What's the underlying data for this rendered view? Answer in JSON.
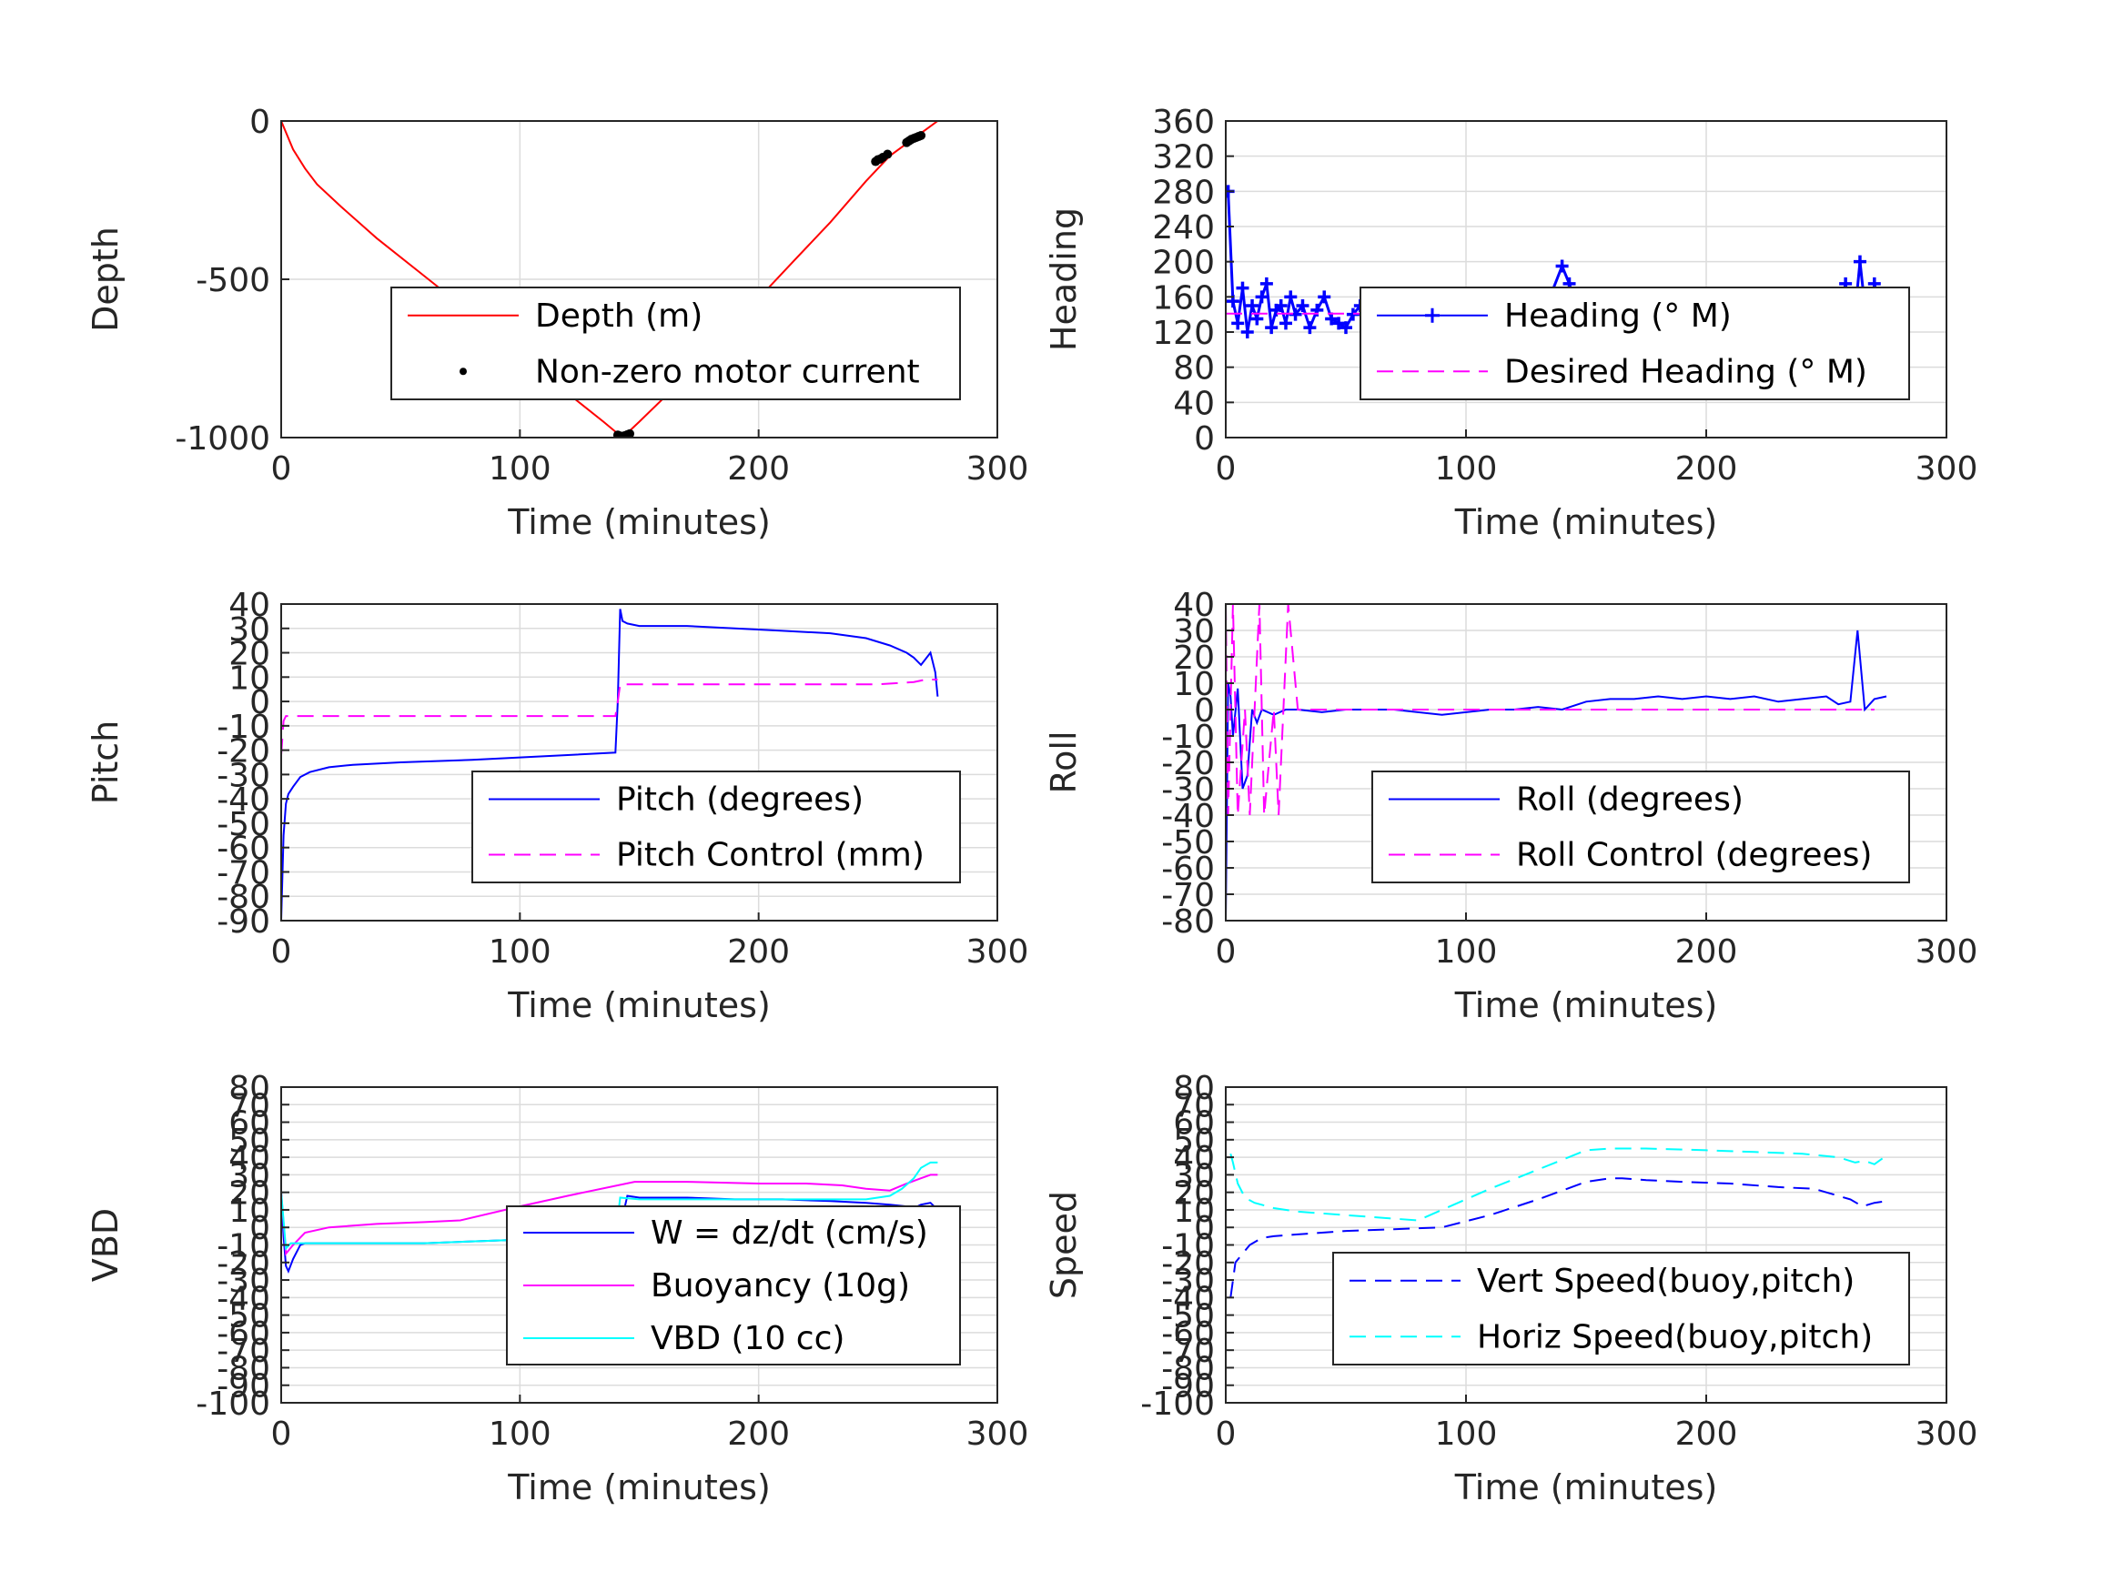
{
  "chart_data": [
    {
      "type": "line",
      "ylabel": "Depth",
      "xlabel": "Time (minutes)",
      "xlim": [
        0,
        300
      ],
      "ylim": [
        -1000,
        0
      ],
      "xticks": [
        "0",
        "100",
        "200",
        "300"
      ],
      "yticks": [
        "0",
        "-500",
        "-1000"
      ],
      "grid": true,
      "legend_position": "center-right",
      "series": [
        {
          "name": "Depth (m)",
          "color": "#ff0000",
          "style": "solid",
          "x": [
            0,
            5,
            10,
            15,
            25,
            40,
            60,
            80,
            100,
            120,
            135,
            143,
            150,
            165,
            180,
            200,
            215,
            230,
            245,
            255,
            265,
            275
          ],
          "y": [
            0,
            -90,
            -150,
            -200,
            -270,
            -370,
            -490,
            -610,
            -730,
            -860,
            -950,
            -1000,
            -950,
            -840,
            -720,
            -560,
            -440,
            -320,
            -190,
            -110,
            -55,
            0
          ]
        },
        {
          "name": "Non-zero motor current",
          "color": "#000000",
          "style": "dots",
          "x": [
            141,
            142,
            143,
            144,
            145,
            146,
            249,
            250,
            251,
            252,
            254,
            262,
            263,
            264,
            265,
            266,
            267,
            268
          ],
          "y": [
            -992,
            -995,
            -996,
            -994,
            -991,
            -988,
            -128,
            -122,
            -120,
            -115,
            -105,
            -68,
            -63,
            -58,
            -55,
            -52,
            -49,
            -46
          ]
        }
      ]
    },
    {
      "type": "line",
      "ylabel": "Heading",
      "xlabel": "Time (minutes)",
      "xlim": [
        0,
        300
      ],
      "ylim": [
        0,
        360
      ],
      "xticks": [
        "0",
        "100",
        "200",
        "300"
      ],
      "yticks": [
        "0",
        "40",
        "80",
        "120",
        "160",
        "200",
        "240",
        "280",
        "320",
        "360"
      ],
      "grid": true,
      "legend_position": "center-right",
      "series": [
        {
          "name": "Heading (° M)",
          "color": "#0000ff",
          "style": "plus",
          "x": [
            1,
            3,
            5,
            7,
            9,
            11,
            13,
            15,
            17,
            19,
            21,
            23,
            25,
            27,
            29,
            32,
            35,
            38,
            41,
            44,
            47,
            50,
            53,
            56,
            60,
            65,
            70,
            75,
            80,
            85,
            90,
            95,
            100,
            105,
            110,
            115,
            120,
            125,
            130,
            135,
            140,
            143,
            146,
            150,
            155,
            160,
            165,
            170,
            175,
            180,
            185,
            190,
            195,
            200,
            205,
            210,
            215,
            220,
            225,
            230,
            235,
            240,
            245,
            250,
            255,
            258,
            261,
            264,
            266,
            268,
            270,
            273,
            276
          ],
          "y": [
            280,
            155,
            130,
            170,
            120,
            150,
            135,
            160,
            175,
            125,
            145,
            150,
            130,
            160,
            140,
            150,
            125,
            145,
            160,
            135,
            130,
            125,
            140,
            150,
            130,
            145,
            155,
            140,
            150,
            135,
            125,
            145,
            135,
            150,
            145,
            140,
            135,
            150,
            140,
            160,
            195,
            175,
            150,
            140,
            155,
            145,
            135,
            160,
            140,
            150,
            145,
            135,
            155,
            150,
            130,
            145,
            160,
            140,
            150,
            135,
            145,
            160,
            130,
            155,
            140,
            175,
            115,
            200,
            150,
            110,
            175,
            140,
            150
          ]
        },
        {
          "name": "Desired Heading (° M)",
          "color": "#ff00ff",
          "style": "dashed",
          "x": [
            0,
            276
          ],
          "y": [
            141,
            141
          ]
        }
      ]
    },
    {
      "type": "line",
      "ylabel": "Pitch",
      "xlabel": "Time (minutes)",
      "xlim": [
        0,
        300
      ],
      "ylim": [
        -90,
        40
      ],
      "xticks": [
        "0",
        "100",
        "200",
        "300"
      ],
      "yticks": [
        "40",
        "30",
        "20",
        "10",
        "0",
        "-10",
        "-20",
        "-30",
        "-40",
        "-50",
        "-60",
        "-70",
        "-80",
        "-90"
      ],
      "grid": true,
      "legend_position": "lower-right",
      "series": [
        {
          "name": "Pitch (degrees)",
          "color": "#0000ff",
          "style": "solid",
          "x": [
            0,
            1,
            2,
            3,
            5,
            8,
            12,
            20,
            30,
            50,
            80,
            100,
            120,
            140,
            141,
            142,
            143,
            145,
            150,
            170,
            190,
            210,
            230,
            245,
            255,
            262,
            265,
            268,
            272,
            274,
            275
          ],
          "y": [
            -90,
            -55,
            -42,
            -38,
            -35,
            -31,
            -29,
            -27,
            -26,
            -25,
            -24,
            -23,
            -22,
            -21,
            0,
            38,
            33,
            32,
            31,
            31,
            30,
            29,
            28,
            26,
            23,
            20,
            18,
            15,
            20,
            12,
            2
          ]
        },
        {
          "name": "Pitch Control (mm)",
          "color": "#ff00ff",
          "style": "dashed",
          "x": [
            0,
            1,
            2,
            5,
            140,
            141,
            142,
            143,
            150,
            200,
            250,
            265,
            270,
            275
          ],
          "y": [
            -22,
            -8,
            -6,
            -6,
            -6,
            0,
            7,
            7,
            7,
            7,
            7,
            8,
            9,
            9
          ]
        }
      ]
    },
    {
      "type": "line",
      "ylabel": "Roll",
      "xlabel": "Time (minutes)",
      "xlim": [
        0,
        300
      ],
      "ylim": [
        -80,
        40
      ],
      "xticks": [
        "0",
        "100",
        "200",
        "300"
      ],
      "yticks": [
        "40",
        "30",
        "20",
        "10",
        "0",
        "-10",
        "-20",
        "-30",
        "-40",
        "-50",
        "-60",
        "-70",
        "-80"
      ],
      "grid": true,
      "legend_position": "lower-right",
      "series": [
        {
          "name": "Roll (degrees)",
          "color": "#0000ff",
          "style": "solid",
          "x": [
            0,
            1,
            2,
            3,
            5,
            7,
            9,
            11,
            13,
            15,
            20,
            25,
            30,
            40,
            50,
            60,
            70,
            80,
            90,
            100,
            110,
            120,
            130,
            140,
            150,
            160,
            170,
            180,
            190,
            200,
            210,
            220,
            230,
            240,
            250,
            255,
            260,
            263,
            266,
            270,
            275
          ],
          "y": [
            -80,
            10,
            5,
            -10,
            8,
            -30,
            -25,
            0,
            -5,
            0,
            -2,
            0,
            0,
            -1,
            0,
            0,
            0,
            -1,
            -2,
            -1,
            0,
            0,
            1,
            0,
            3,
            4,
            4,
            5,
            4,
            5,
            4,
            5,
            3,
            4,
            5,
            2,
            3,
            30,
            0,
            4,
            5
          ]
        },
        {
          "name": "Roll Control (degrees)",
          "color": "#ff00ff",
          "style": "dashed",
          "x": [
            0,
            1,
            3,
            5,
            8,
            10,
            14,
            16,
            20,
            22,
            26,
            30,
            40,
            60,
            80,
            100,
            120,
            140,
            160,
            180,
            200,
            220,
            230,
            240,
            260,
            270
          ],
          "y": [
            40,
            -40,
            40,
            -40,
            0,
            -40,
            40,
            -40,
            0,
            -40,
            40,
            0,
            0,
            0,
            0,
            0,
            0,
            0,
            0,
            0,
            0,
            0,
            0,
            0,
            0,
            0
          ]
        }
      ]
    },
    {
      "type": "line",
      "ylabel": "VBD",
      "xlabel": "Time (minutes)",
      "xlim": [
        0,
        300
      ],
      "ylim": [
        -100,
        80
      ],
      "xticks": [
        "0",
        "100",
        "200",
        "300"
      ],
      "yticks": [
        "80",
        "70",
        "60",
        "50",
        "40",
        "30",
        "20",
        "10",
        "0",
        "-10",
        "-20",
        "-30",
        "-40",
        "-50",
        "-60",
        "-70",
        "-80",
        "-90",
        "-100"
      ],
      "grid": true,
      "legend_position": "lower-right",
      "series": [
        {
          "name": "W = dz/dt (cm/s)",
          "color": "#0000ff",
          "style": "solid",
          "x": [
            0,
            1,
            2,
            3,
            5,
            8,
            10,
            20,
            40,
            60,
            80,
            100,
            120,
            140,
            142,
            145,
            150,
            170,
            190,
            210,
            230,
            245,
            255,
            262,
            265,
            268,
            272,
            275
          ],
          "y": [
            20,
            -5,
            -22,
            -25,
            -18,
            -10,
            -9,
            -9,
            -9,
            -9,
            -8,
            -7,
            -7,
            -6,
            0,
            18,
            17,
            17,
            16,
            16,
            15,
            14,
            13,
            12,
            11,
            13,
            14,
            10
          ]
        },
        {
          "name": "Buoyancy (10g)",
          "color": "#ff00ff",
          "style": "solid",
          "x": [
            0,
            2,
            5,
            10,
            20,
            40,
            60,
            75,
            100,
            120,
            148,
            170,
            200,
            220,
            235,
            245,
            255,
            262,
            268,
            272,
            275
          ],
          "y": [
            20,
            -15,
            -10,
            -3,
            0,
            2,
            3,
            4,
            12,
            18,
            26,
            26,
            25,
            25,
            24,
            22,
            21,
            25,
            28,
            30,
            30
          ]
        },
        {
          "name": "VBD (10 cc)",
          "color": "#00ffff",
          "style": "solid",
          "x": [
            0,
            2,
            4,
            8,
            20,
            40,
            60,
            80,
            100,
            120,
            140,
            142,
            150,
            170,
            200,
            230,
            245,
            255,
            260,
            265,
            268,
            272,
            275
          ],
          "y": [
            20,
            -12,
            -9,
            -9,
            -9,
            -9,
            -9,
            -8,
            -7,
            -6,
            -6,
            17,
            16,
            16,
            16,
            16,
            16,
            18,
            22,
            28,
            34,
            37,
            37
          ]
        }
      ]
    },
    {
      "type": "line",
      "ylabel": "Speed",
      "xlabel": "Time (minutes)",
      "xlim": [
        0,
        300
      ],
      "ylim": [
        -100,
        80
      ],
      "xticks": [
        "0",
        "100",
        "200",
        "300"
      ],
      "yticks": [
        "80",
        "70",
        "60",
        "50",
        "40",
        "30",
        "20",
        "10",
        "0",
        "-10",
        "-20",
        "-30",
        "-40",
        "-50",
        "-60",
        "-70",
        "-80",
        "-90",
        "-100"
      ],
      "grid": true,
      "legend_position": "lower-right",
      "series": [
        {
          "name": "Vert Speed(buoy,pitch)",
          "color": "#0000ff",
          "style": "dashed",
          "x": [
            2,
            4,
            7,
            10,
            15,
            20,
            30,
            50,
            70,
            90,
            110,
            130,
            150,
            160,
            165,
            175,
            190,
            210,
            230,
            245,
            250,
            260,
            265,
            270,
            275
          ],
          "y": [
            -40,
            -20,
            -15,
            -10,
            -6,
            -5,
            -4,
            -2,
            -1,
            0,
            7,
            16,
            26,
            28,
            28,
            27,
            26,
            25,
            23,
            22,
            20,
            16,
            12,
            14,
            15
          ]
        },
        {
          "name": "Horiz Speed(buoy,pitch)",
          "color": "#00ffff",
          "style": "dashed",
          "x": [
            2,
            3,
            5,
            8,
            12,
            20,
            30,
            50,
            70,
            80,
            90,
            110,
            130,
            150,
            160,
            175,
            200,
            220,
            240,
            255,
            262,
            266,
            270,
            275
          ],
          "y": [
            42,
            37,
            25,
            17,
            14,
            11,
            9,
            7,
            5,
            4,
            10,
            22,
            33,
            44,
            45,
            45,
            44,
            43,
            42,
            40,
            37,
            38,
            36,
            41
          ]
        }
      ]
    }
  ]
}
